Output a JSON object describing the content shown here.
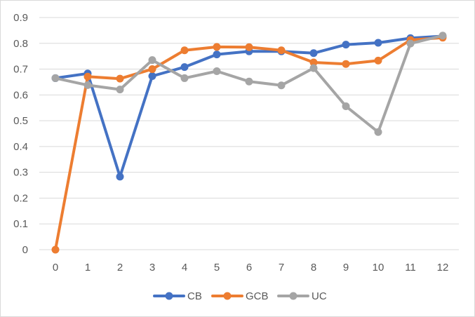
{
  "chart_data": {
    "type": "line",
    "title": "",
    "xlabel": "",
    "ylabel": "",
    "x": [
      0,
      1,
      2,
      3,
      4,
      5,
      6,
      7,
      8,
      9,
      10,
      11,
      12
    ],
    "x_tick_labels": [
      "0",
      "1",
      "2",
      "3",
      "4",
      "5",
      "6",
      "7",
      "8",
      "9",
      "10",
      "11",
      "12"
    ],
    "ylim": [
      0,
      0.9
    ],
    "y_ticks": [
      0,
      0.1,
      0.2,
      0.3,
      0.4,
      0.5,
      0.6,
      0.7,
      0.8,
      0.9
    ],
    "y_tick_labels": [
      "0",
      "0.1",
      "0.2",
      "0.3",
      "0.4",
      "0.5",
      "0.6",
      "0.7",
      "0.8",
      "0.9"
    ],
    "grid": "horizontal",
    "legend_position": "bottom",
    "series": [
      {
        "name": "CB",
        "color": "#4472C4",
        "values": [
          0.665,
          0.683,
          0.283,
          0.673,
          0.708,
          0.757,
          0.769,
          0.769,
          0.762,
          0.795,
          0.802,
          0.82,
          0.828
        ]
      },
      {
        "name": "GCB",
        "color": "#ED7D31",
        "values": [
          0.0,
          0.671,
          0.663,
          0.7,
          0.773,
          0.786,
          0.785,
          0.773,
          0.726,
          0.72,
          0.733,
          0.813,
          0.822
        ]
      },
      {
        "name": "UC",
        "color": "#A5A5A5",
        "values": [
          0.665,
          0.638,
          0.621,
          0.735,
          0.665,
          0.692,
          0.652,
          0.637,
          0.704,
          0.556,
          0.456,
          0.799,
          0.83
        ]
      }
    ]
  }
}
